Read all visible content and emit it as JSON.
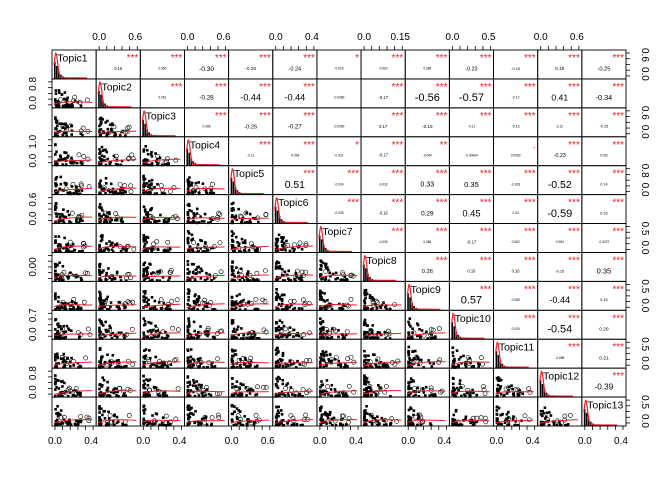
{
  "chart_data": {
    "type": "scatter-matrix",
    "title": "",
    "variables": [
      "Topic1",
      "Topic2",
      "Topic3",
      "Topic4",
      "Topic5",
      "Topic6",
      "Topic7",
      "Topic8",
      "Topic9",
      "Topic10",
      "Topic11",
      "Topic12",
      "Topic13"
    ],
    "upper_panels": [
      {
        "row": 0,
        "col": 1,
        "r": "0.16",
        "stars": "***"
      },
      {
        "row": 0,
        "col": 2,
        "r": "0.050",
        "stars": "***"
      },
      {
        "row": 0,
        "col": 3,
        "r": "-0.30",
        "stars": "***"
      },
      {
        "row": 0,
        "col": 4,
        "r": "-0.20",
        "stars": "***"
      },
      {
        "row": 0,
        "col": 5,
        "r": "-0.24",
        "stars": "***"
      },
      {
        "row": 0,
        "col": 6,
        "r": "-0.016",
        "stars": "*"
      },
      {
        "row": 0,
        "col": 7,
        "r": "-0.062",
        "stars": "***"
      },
      {
        "row": 0,
        "col": 8,
        "r": "0.080",
        "stars": "***"
      },
      {
        "row": 0,
        "col": 9,
        "r": "-0.23",
        "stars": "***"
      },
      {
        "row": 0,
        "col": 10,
        "r": "-0.15",
        "stars": "***"
      },
      {
        "row": 0,
        "col": 11,
        "r": "0.19",
        "stars": "***"
      },
      {
        "row": 0,
        "col": 12,
        "r": "-0.25",
        "stars": "***"
      },
      {
        "row": 1,
        "col": 2,
        "r": "0.061",
        "stars": "***"
      },
      {
        "row": 1,
        "col": 3,
        "r": "-0.28",
        "stars": "***"
      },
      {
        "row": 1,
        "col": 4,
        "r": "-0.44",
        "stars": "***"
      },
      {
        "row": 1,
        "col": 5,
        "r": "-0.44",
        "stars": "***"
      },
      {
        "row": 1,
        "col": 6,
        "r": "-0.0089",
        "stars": ""
      },
      {
        "row": 1,
        "col": 7,
        "r": "-0.17",
        "stars": "***"
      },
      {
        "row": 1,
        "col": 8,
        "r": "-0.56",
        "stars": "***"
      },
      {
        "row": 1,
        "col": 9,
        "r": "-0.57",
        "stars": "***"
      },
      {
        "row": 1,
        "col": 10,
        "r": "-0.12",
        "stars": "***"
      },
      {
        "row": 1,
        "col": 11,
        "r": "0.41",
        "stars": "***"
      },
      {
        "row": 1,
        "col": 12,
        "r": "-0.34",
        "stars": "***"
      },
      {
        "row": 2,
        "col": 3,
        "r": "0.086",
        "stars": "***"
      },
      {
        "row": 2,
        "col": 4,
        "r": "-0.25",
        "stars": "***"
      },
      {
        "row": 2,
        "col": 5,
        "r": "-0.27",
        "stars": "***"
      },
      {
        "row": 2,
        "col": 6,
        "r": "-0.0080",
        "stars": ""
      },
      {
        "row": 2,
        "col": 7,
        "r": "0.17",
        "stars": "***"
      },
      {
        "row": 2,
        "col": 8,
        "r": "-0.19",
        "stars": "***"
      },
      {
        "row": 2,
        "col": 9,
        "r": "-0.11",
        "stars": "***"
      },
      {
        "row": 2,
        "col": 10,
        "r": "-0.13",
        "stars": "***"
      },
      {
        "row": 2,
        "col": 11,
        "r": "0.12",
        "stars": "***"
      },
      {
        "row": 2,
        "col": 12,
        "r": "-0.15",
        "stars": "***"
      },
      {
        "row": 3,
        "col": 4,
        "r": "-0.11",
        "stars": "***"
      },
      {
        "row": 3,
        "col": 5,
        "r": "-0.054",
        "stars": "***"
      },
      {
        "row": 3,
        "col": 6,
        "r": "-0.021",
        "stars": "*"
      },
      {
        "row": 3,
        "col": 7,
        "r": "-0.17",
        "stars": "***"
      },
      {
        "row": 3,
        "col": 8,
        "r": "-0.044",
        "stars": "**"
      },
      {
        "row": 3,
        "col": 9,
        "r": "-0.00064",
        "stars": ""
      },
      {
        "row": 3,
        "col": 10,
        "r": "0.0083",
        "stars": "."
      },
      {
        "row": 3,
        "col": 11,
        "r": "-0.23",
        "stars": "***"
      },
      {
        "row": 3,
        "col": 12,
        "r": "0.032",
        "stars": "***"
      },
      {
        "row": 4,
        "col": 5,
        "r": "0.51",
        "stars": "***"
      },
      {
        "row": 4,
        "col": 6,
        "r": "-0.034",
        "stars": "***"
      },
      {
        "row": 4,
        "col": 7,
        "r": "-0.032",
        "stars": "***"
      },
      {
        "row": 4,
        "col": 8,
        "r": "0.33",
        "stars": "***"
      },
      {
        "row": 4,
        "col": 9,
        "r": "0.35",
        "stars": "***"
      },
      {
        "row": 4,
        "col": 10,
        "r": "-0.033",
        "stars": "***"
      },
      {
        "row": 4,
        "col": 11,
        "r": "-0.52",
        "stars": "***"
      },
      {
        "row": 4,
        "col": 12,
        "r": "0.14",
        "stars": "***"
      },
      {
        "row": 5,
        "col": 6,
        "r": "-0.035",
        "stars": "***"
      },
      {
        "row": 5,
        "col": 7,
        "r": "-0.16",
        "stars": "***"
      },
      {
        "row": 5,
        "col": 8,
        "r": "0.29",
        "stars": "***"
      },
      {
        "row": 5,
        "col": 9,
        "r": "0.45",
        "stars": "***"
      },
      {
        "row": 5,
        "col": 10,
        "r": "0.04",
        "stars": "***"
      },
      {
        "row": 5,
        "col": 11,
        "r": "-0.59",
        "stars": "***"
      },
      {
        "row": 5,
        "col": 12,
        "r": "0.15",
        "stars": "***"
      },
      {
        "row": 6,
        "col": 7,
        "r": "-0.030",
        "stars": "***"
      },
      {
        "row": 6,
        "col": 8,
        "r": "0.086",
        "stars": "***"
      },
      {
        "row": 6,
        "col": 9,
        "r": "-0.17",
        "stars": "***"
      },
      {
        "row": 6,
        "col": 10,
        "r": "0.062",
        "stars": "***"
      },
      {
        "row": 6,
        "col": 11,
        "r": "0.084",
        "stars": "***"
      },
      {
        "row": 6,
        "col": 12,
        "r": "-0.0072",
        "stars": "***"
      },
      {
        "row": 7,
        "col": 8,
        "r": "0.26",
        "stars": "***"
      },
      {
        "row": 7,
        "col": 9,
        "r": "0.16",
        "stars": "***"
      },
      {
        "row": 7,
        "col": 10,
        "r": "0.16",
        "stars": "***"
      },
      {
        "row": 7,
        "col": 11,
        "r": "-0.15",
        "stars": "***"
      },
      {
        "row": 7,
        "col": 12,
        "r": "0.35",
        "stars": "***"
      },
      {
        "row": 8,
        "col": 9,
        "r": "0.57",
        "stars": "***"
      },
      {
        "row": 8,
        "col": 10,
        "r": "0.088",
        "stars": "***"
      },
      {
        "row": 8,
        "col": 11,
        "r": "-0.44",
        "stars": "***"
      },
      {
        "row": 8,
        "col": 12,
        "r": "0.15",
        "stars": "***"
      },
      {
        "row": 9,
        "col": 10,
        "r": "0.030",
        "stars": "***"
      },
      {
        "row": 9,
        "col": 11,
        "r": "-0.54",
        "stars": "***"
      },
      {
        "row": 9,
        "col": 12,
        "r": "0.20",
        "stars": "***"
      },
      {
        "row": 10,
        "col": 11,
        "r": "-0.088",
        "stars": "***"
      },
      {
        "row": 10,
        "col": 12,
        "r": "0.21",
        "stars": "***"
      },
      {
        "row": 11,
        "col": 12,
        "r": "-0.39",
        "stars": "***"
      }
    ],
    "bottom_axis": [
      {
        "col": 0,
        "ticks": [
          "0.0",
          "0.4"
        ]
      },
      {
        "col": 2,
        "ticks": [
          "0.0",
          "0.4"
        ]
      },
      {
        "col": 4,
        "ticks": [
          "0.0",
          "0.6"
        ]
      },
      {
        "col": 6,
        "ticks": [
          "0.0",
          "0.4"
        ]
      },
      {
        "col": 8,
        "ticks": [
          "0.0",
          "0.4"
        ]
      },
      {
        "col": 10,
        "ticks": [
          "0.0",
          "0.4"
        ]
      },
      {
        "col": 12,
        "ticks": [
          "0.0",
          "0.4"
        ]
      }
    ],
    "top_axis": [
      {
        "col": 1,
        "ticks": [
          "0.0",
          "0.6"
        ]
      },
      {
        "col": 3,
        "ticks": [
          "0.0",
          "0.6"
        ]
      },
      {
        "col": 5,
        "ticks": [
          "0.0",
          "0.4"
        ]
      },
      {
        "col": 7,
        "ticks": [
          "0.0",
          "0.15"
        ]
      },
      {
        "col": 9,
        "ticks": [
          "0.0",
          "0.5"
        ]
      },
      {
        "col": 11,
        "ticks": [
          "0.0",
          "0.6"
        ]
      }
    ],
    "left_axis": [
      {
        "row": 1,
        "ticks": [
          "0.0",
          "0.8"
        ]
      },
      {
        "row": 3,
        "ticks": [
          "0.0",
          "1.0"
        ]
      },
      {
        "row": 5,
        "ticks": [
          "0.0",
          "0.6"
        ]
      },
      {
        "row": 7,
        "ticks": [
          "0.00"
        ]
      },
      {
        "row": 9,
        "ticks": [
          "0.0",
          "0.7"
        ]
      },
      {
        "row": 11,
        "ticks": [
          "0.0",
          "0.8"
        ]
      }
    ],
    "right_axis": [
      {
        "row": 0,
        "ticks": [
          "0.0",
          "0.6"
        ]
      },
      {
        "row": 2,
        "ticks": [
          "0.0",
          "0.6"
        ]
      },
      {
        "row": 4,
        "ticks": [
          "0.0",
          "0.8"
        ]
      },
      {
        "row": 6,
        "ticks": [
          "0.0",
          "0.5"
        ]
      },
      {
        "row": 8,
        "ticks": [
          "0.0",
          "0.5"
        ]
      },
      {
        "row": 10,
        "ticks": [
          "0.0",
          "0.5"
        ]
      },
      {
        "row": 12,
        "ticks": [
          "0.0",
          "0.5"
        ]
      }
    ],
    "colors": {
      "stars": "#e8202a",
      "histogram": "#000000",
      "density": "#e8202a",
      "smooth": "#e8202a"
    }
  }
}
